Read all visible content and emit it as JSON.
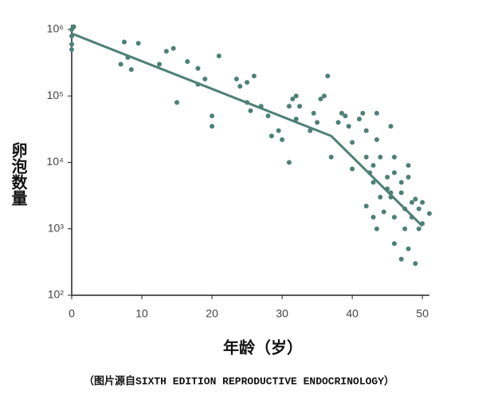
{
  "chart_data": {
    "type": "scatter",
    "x_label": "年龄（岁）",
    "y_label": "卵泡数量",
    "caption": "（图片源自SIXTH EDITION REPRODUCTIVE ENDOCRINOLOGY）",
    "color": "#4d8077",
    "ylog": true,
    "xlim": [
      0,
      51
    ],
    "ylim": [
      100,
      1000000
    ],
    "xticks": [
      0,
      10,
      20,
      30,
      40,
      50
    ],
    "yticks": [
      {
        "value": 100,
        "label": "10²"
      },
      {
        "value": 1000,
        "label": "10³"
      },
      {
        "value": 10000,
        "label": "10⁴"
      },
      {
        "value": 100000,
        "label": "10⁵"
      },
      {
        "value": 1000000,
        "label": "10⁶"
      }
    ],
    "x": [
      0,
      0,
      0,
      0,
      0.3,
      7,
      7.5,
      8,
      8.5,
      9.5,
      12.5,
      13.5,
      14.5,
      15,
      16.5,
      18,
      18,
      19,
      20,
      20,
      21,
      23.5,
      24,
      25,
      25,
      25.5,
      26,
      27,
      28,
      28.5,
      29.5,
      30,
      31,
      31,
      31.5,
      32,
      32.5,
      32,
      34,
      34.5,
      35,
      35.5,
      36,
      36.5,
      37,
      38,
      38.5,
      39,
      39.5,
      40,
      40,
      41,
      41.5,
      42,
      42,
      42,
      42.5,
      43,
      43,
      43,
      43.5,
      43.5,
      43.5,
      44,
      44,
      44.5,
      45,
      45,
      45.5,
      45.5,
      45.5,
      46,
      46,
      46,
      46,
      47,
      47,
      47,
      47.5,
      47.5,
      48,
      48,
      48,
      48.5,
      48.5,
      49,
      49,
      49.5,
      49.5,
      50,
      50,
      51
    ],
    "values": [
      1000000,
      800000,
      600000,
      500000,
      1100000,
      300000,
      650000,
      380000,
      250000,
      620000,
      300000,
      470000,
      520000,
      80000,
      330000,
      260000,
      150000,
      180000,
      50000,
      35000,
      400000,
      180000,
      140000,
      160000,
      80000,
      60000,
      200000,
      70000,
      50000,
      25000,
      30000,
      22000,
      10000,
      70000,
      90000,
      100000,
      70000,
      45000,
      30000,
      55000,
      40000,
      90000,
      100000,
      200000,
      12000,
      40000,
      55000,
      50000,
      35000,
      20000,
      8000,
      45000,
      55000,
      30000,
      12000,
      2200,
      7000,
      9000,
      5000,
      1500,
      55000,
      22000,
      1000,
      3000,
      12000,
      1800,
      4000,
      6000,
      3500,
      3000,
      35000,
      1500,
      600,
      7000,
      12000,
      5000,
      3500,
      350,
      2000,
      1000,
      500,
      9000,
      6000,
      2500,
      1500,
      300,
      2800,
      2000,
      1000,
      2500,
      1200,
      1700
    ],
    "trend": {
      "x": [
        0,
        37,
        50
      ],
      "values": [
        870000,
        25000,
        1100
      ]
    }
  }
}
